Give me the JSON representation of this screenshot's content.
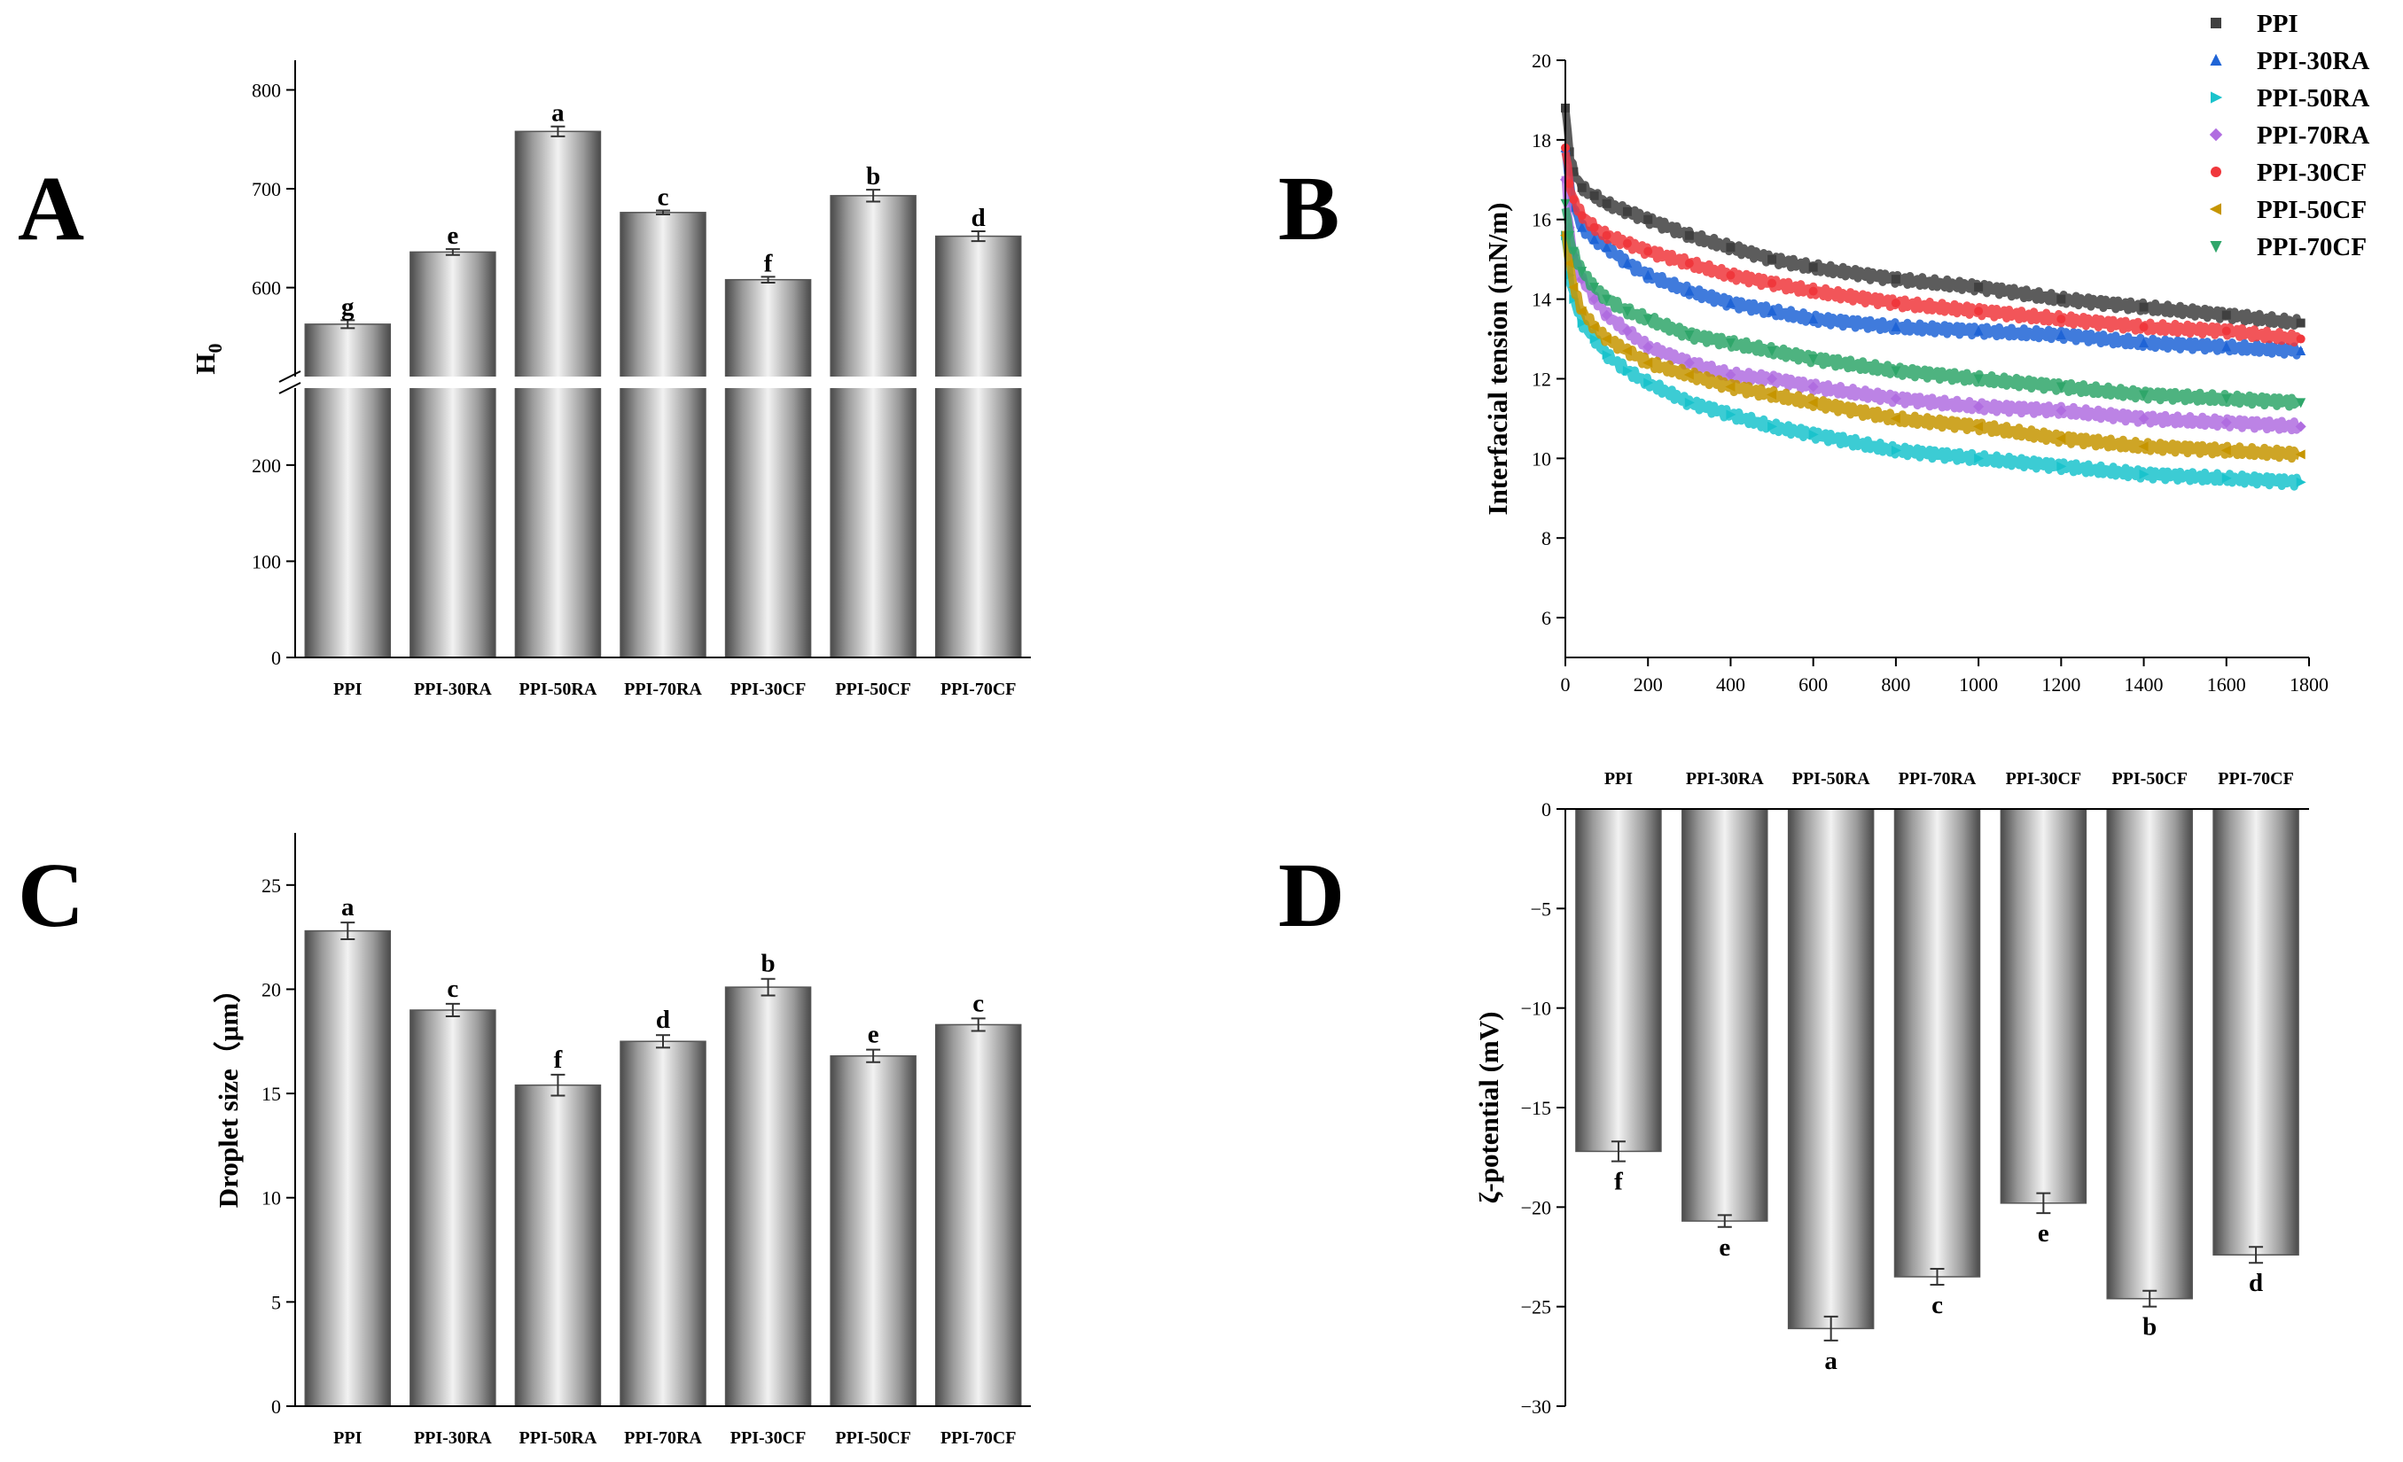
{
  "panel_labels": [
    "A",
    "B",
    "C",
    "D"
  ],
  "chart_data": [
    {
      "panel": "A",
      "type": "bar",
      "categories": [
        "PPI",
        "PPI-30RA",
        "PPI-50RA",
        "PPI-70RA",
        "PPI-30CF",
        "PPI-50CF",
        "PPI-70CF"
      ],
      "values": [
        563,
        636,
        758,
        676,
        608,
        693,
        652
      ],
      "errors": [
        4,
        3,
        5,
        2,
        3,
        6,
        5
      ],
      "significance": [
        "g",
        "e",
        "a",
        "c",
        "f",
        "b",
        "d"
      ],
      "ylabel": "H",
      "ylabel_sub": "0",
      "broken_axis": true,
      "ylim_lower": [
        0,
        280
      ],
      "ylim_upper": [
        510,
        830
      ],
      "yticks_lower": [
        "0",
        "100",
        "200"
      ],
      "yticks_upper": [
        "600",
        "700",
        "800"
      ],
      "bar_style": "gray cylindrical gradient"
    },
    {
      "panel": "B",
      "type": "scatter",
      "ylabel": "Interfacial tension (mN/m)",
      "xlim": [
        0,
        1800
      ],
      "ylim": [
        5,
        20
      ],
      "xticks": [
        "0",
        "200",
        "400",
        "600",
        "800",
        "1000",
        "1200",
        "1400",
        "1600",
        "1800"
      ],
      "yticks": [
        "6",
        "8",
        "10",
        "12",
        "14",
        "16",
        "18",
        "20"
      ],
      "legend_position": "top-right, outside",
      "series": [
        {
          "name": "PPI",
          "color": "#404040",
          "marker": "square",
          "x": [
            0,
            10,
            20,
            40,
            70,
            100,
            150,
            200,
            300,
            400,
            500,
            600,
            800,
            1000,
            1200,
            1400,
            1600,
            1780
          ],
          "y": [
            18.8,
            17.7,
            17.2,
            16.8,
            16.6,
            16.4,
            16.2,
            16.0,
            15.6,
            15.3,
            15.0,
            14.8,
            14.5,
            14.3,
            14.0,
            13.8,
            13.6,
            13.4
          ]
        },
        {
          "name": "PPI-30RA",
          "color": "#1f64d6",
          "marker": "triangle-up",
          "x": [
            0,
            10,
            20,
            40,
            70,
            100,
            150,
            200,
            300,
            400,
            500,
            600,
            800,
            1000,
            1200,
            1400,
            1600,
            1780
          ],
          "y": [
            17.8,
            16.9,
            16.3,
            15.8,
            15.5,
            15.3,
            14.9,
            14.6,
            14.2,
            13.9,
            13.7,
            13.5,
            13.3,
            13.2,
            13.1,
            12.9,
            12.8,
            12.7
          ]
        },
        {
          "name": "PPI-50RA",
          "color": "#1ac3cc",
          "marker": "triangle-right",
          "x": [
            0,
            10,
            20,
            40,
            70,
            100,
            150,
            200,
            300,
            400,
            500,
            600,
            800,
            1000,
            1200,
            1400,
            1600,
            1780
          ],
          "y": [
            15.6,
            14.6,
            14.0,
            13.4,
            13.0,
            12.6,
            12.2,
            11.9,
            11.4,
            11.1,
            10.8,
            10.6,
            10.2,
            10.0,
            9.8,
            9.6,
            9.5,
            9.4
          ]
        },
        {
          "name": "PPI-70RA",
          "color": "#b06de0",
          "marker": "diamond",
          "x": [
            0,
            10,
            20,
            40,
            70,
            100,
            150,
            200,
            300,
            400,
            500,
            600,
            800,
            1000,
            1200,
            1400,
            1600,
            1780
          ],
          "y": [
            17.0,
            15.8,
            15.1,
            14.5,
            14.0,
            13.6,
            13.2,
            12.8,
            12.4,
            12.1,
            12.0,
            11.8,
            11.5,
            11.3,
            11.2,
            11.0,
            10.9,
            10.8
          ]
        },
        {
          "name": "PPI-30CF",
          "color": "#f0373c",
          "marker": "circle",
          "x": [
            0,
            10,
            20,
            40,
            70,
            100,
            150,
            200,
            300,
            400,
            500,
            600,
            800,
            1000,
            1200,
            1400,
            1600,
            1780
          ],
          "y": [
            17.8,
            16.9,
            16.5,
            16.1,
            15.8,
            15.6,
            15.4,
            15.2,
            14.9,
            14.6,
            14.4,
            14.2,
            13.9,
            13.7,
            13.5,
            13.3,
            13.2,
            13.0
          ]
        },
        {
          "name": "PPI-50CF",
          "color": "#c69500",
          "marker": "triangle-left",
          "x": [
            0,
            10,
            20,
            40,
            70,
            100,
            150,
            200,
            300,
            400,
            500,
            600,
            800,
            1000,
            1200,
            1400,
            1600,
            1780
          ],
          "y": [
            15.6,
            14.9,
            14.3,
            13.7,
            13.3,
            13.0,
            12.7,
            12.4,
            12.1,
            11.8,
            11.6,
            11.4,
            11.0,
            10.8,
            10.5,
            10.3,
            10.2,
            10.1
          ]
        },
        {
          "name": "PPI-70CF",
          "color": "#2fa66a",
          "marker": "triangle-down",
          "x": [
            0,
            10,
            20,
            40,
            70,
            100,
            150,
            200,
            300,
            400,
            500,
            600,
            800,
            1000,
            1200,
            1400,
            1600,
            1780
          ],
          "y": [
            16.4,
            15.6,
            15.2,
            14.7,
            14.3,
            14.0,
            13.7,
            13.5,
            13.1,
            12.9,
            12.7,
            12.5,
            12.2,
            12.0,
            11.8,
            11.6,
            11.5,
            11.4
          ]
        }
      ]
    },
    {
      "panel": "C",
      "type": "bar",
      "categories": [
        "PPI",
        "PPI-30RA",
        "PPI-50RA",
        "PPI-70RA",
        "PPI-30CF",
        "PPI-50CF",
        "PPI-70CF"
      ],
      "values": [
        22.8,
        19.0,
        15.4,
        17.5,
        20.1,
        16.8,
        18.3
      ],
      "errors": [
        0.4,
        0.3,
        0.5,
        0.3,
        0.4,
        0.3,
        0.3
      ],
      "significance": [
        "a",
        "c",
        "f",
        "d",
        "b",
        "e",
        "c"
      ],
      "ylabel": "Droplet size（μm）",
      "ylim": [
        0,
        27.5
      ],
      "yticks": [
        "0",
        "5",
        "10",
        "15",
        "20",
        "25"
      ],
      "bar_style": "gray cylindrical gradient"
    },
    {
      "panel": "D",
      "type": "bar",
      "categories": [
        "PPI",
        "PPI-30RA",
        "PPI-50RA",
        "PPI-70RA",
        "PPI-30CF",
        "PPI-50CF",
        "PPI-70CF"
      ],
      "values": [
        -17.2,
        -20.7,
        -26.1,
        -23.5,
        -19.8,
        -24.6,
        -22.4
      ],
      "errors": [
        0.5,
        0.3,
        0.6,
        0.4,
        0.5,
        0.4,
        0.4
      ],
      "significance": [
        "f",
        "e",
        "a",
        "c",
        "e",
        "b",
        "d"
      ],
      "ylabel": "ζ-potential (mV)",
      "ylim": [
        -30,
        0
      ],
      "yticks": [
        "0",
        "−5",
        "−10",
        "−15",
        "−20",
        "−25",
        "−30"
      ],
      "category_axis": "top",
      "bar_style": "gray cylindrical gradient"
    }
  ]
}
